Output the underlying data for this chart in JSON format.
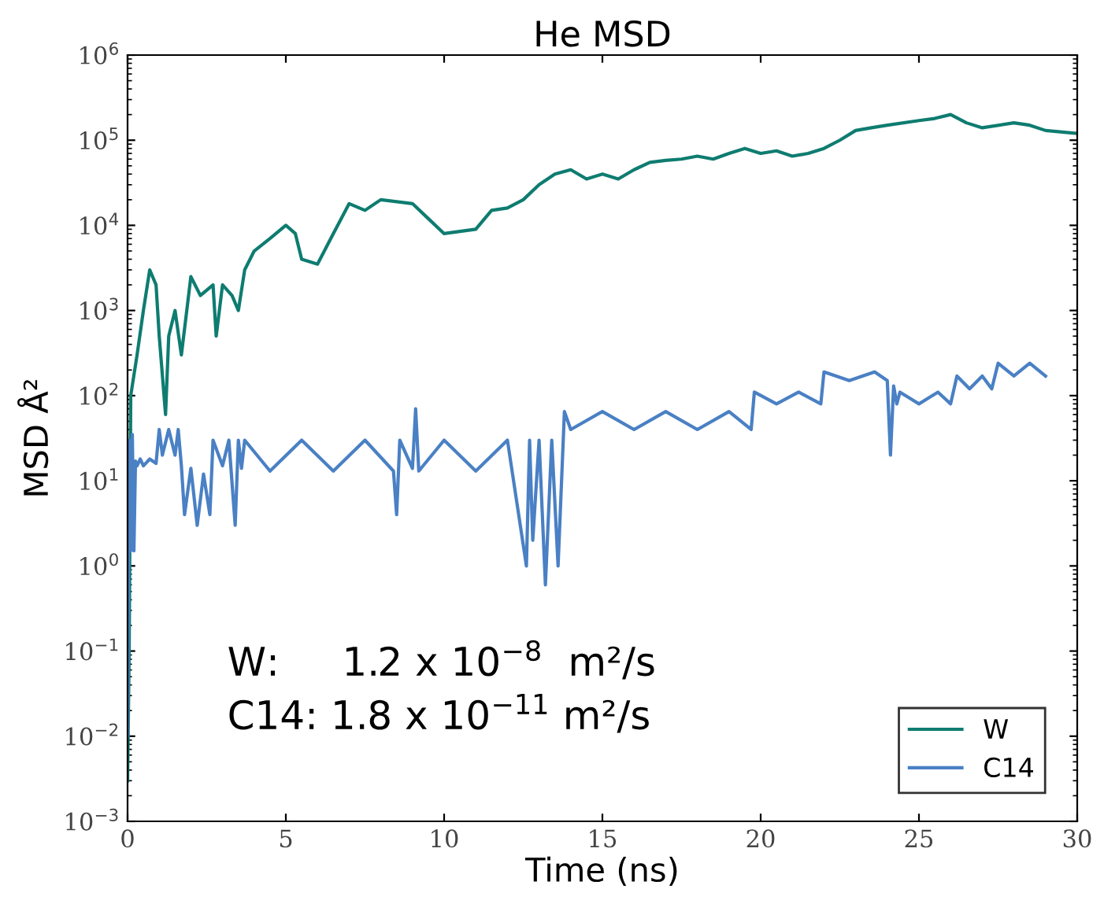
{
  "chart_data": {
    "type": "line",
    "title": "He MSD",
    "xlabel": "Time (ns)",
    "ylabel": "MSD Å²",
    "log": "y",
    "xlim": [
      0,
      30
    ],
    "ylim": [
      0.001,
      1000000
    ],
    "xticks": [
      0,
      5,
      10,
      15,
      20,
      25,
      30
    ],
    "yticks": [
      {
        "value": 0.001,
        "label": "10$^{−3}$"
      },
      {
        "value": 0.01,
        "label": "10$^{−2}$"
      },
      {
        "value": 0.1,
        "label": "10$^{−1}$"
      },
      {
        "value": 1,
        "label": "10$^{0}$"
      },
      {
        "value": 10,
        "label": "10$^{1}$"
      },
      {
        "value": 100,
        "label": "10$^{2}$"
      },
      {
        "value": 1000,
        "label": "10$^{3}$"
      },
      {
        "value": 10000,
        "label": "10$^{4}$"
      },
      {
        "value": 100000,
        "label": "10$^{5}$"
      },
      {
        "value": 1000000,
        "label": "10$^{6}$"
      }
    ],
    "grid": false,
    "legend": "bottom right",
    "marker": "none",
    "line_style": "solid",
    "annotations": [
      "W:     1.2 x 10$^{−8}$  m²/s",
      "C14: 1.8 x 10$^{−11}$ m²/s"
    ],
    "series": [
      {
        "name": "W",
        "color": "#0e7c70",
        "x": [
          0,
          0.05,
          0.1,
          0.3,
          0.5,
          0.7,
          0.9,
          1.0,
          1.2,
          1.3,
          1.5,
          1.7,
          2.0,
          2.3,
          2.7,
          2.8,
          3.0,
          3.3,
          3.5,
          3.7,
          4.0,
          4.5,
          5.0,
          5.3,
          5.5,
          6.0,
          6.5,
          7.0,
          7.5,
          8.0,
          9.0,
          9.5,
          10.0,
          10.5,
          11.0,
          11.5,
          12.0,
          12.5,
          13.0,
          13.5,
          14.0,
          14.5,
          15.0,
          15.5,
          16.0,
          16.5,
          17.0,
          17.5,
          18.0,
          18.5,
          19.0,
          19.5,
          20.0,
          20.5,
          21.0,
          21.5,
          22.0,
          22.5,
          23.0,
          23.5,
          24.0,
          25.0,
          25.5,
          26.0,
          26.5,
          27.0,
          28.0,
          28.5,
          29.0,
          30.0
        ],
        "values": [
          0.003,
          0.1,
          100,
          300,
          1000,
          3000,
          2000,
          500,
          60,
          500,
          1000,
          300,
          2500,
          1500,
          2000,
          500,
          2000,
          1500,
          1000,
          3000,
          5000,
          7000,
          10000,
          8000,
          4000,
          3500,
          8000,
          18000,
          15000,
          20000,
          18000,
          12000,
          8000,
          8500,
          9000,
          15000,
          16000,
          20000,
          30000,
          40000,
          45000,
          35000,
          40000,
          35000,
          45000,
          55000,
          58000,
          60000,
          65000,
          60000,
          70000,
          80000,
          70000,
          75000,
          65000,
          70000,
          80000,
          100000,
          130000,
          140000,
          150000,
          170000,
          180000,
          200000,
          160000,
          140000,
          160000,
          150000,
          130000,
          120000
        ]
      },
      {
        "name": "C14",
        "color": "#4a80c4",
        "x": [
          0,
          0.05,
          0.1,
          0.15,
          0.2,
          0.25,
          0.3,
          0.4,
          0.5,
          0.7,
          0.9,
          1.0,
          1.1,
          1.3,
          1.5,
          1.6,
          1.7,
          1.8,
          2.0,
          2.2,
          2.4,
          2.6,
          2.7,
          3.0,
          3.2,
          3.4,
          3.5,
          3.6,
          3.7,
          4.5,
          5.5,
          6.5,
          7.5,
          8.4,
          8.5,
          8.6,
          9.0,
          9.1,
          9.2,
          10.0,
          11.0,
          12.0,
          12.6,
          12.7,
          12.8,
          13.0,
          13.2,
          13.4,
          13.6,
          13.8,
          14.0,
          15.0,
          16.0,
          17.0,
          18.0,
          19.0,
          19.7,
          19.8,
          20.5,
          21.2,
          21.9,
          22.0,
          22.8,
          23.6,
          24.0,
          24.1,
          24.2,
          24.3,
          24.4,
          25.0,
          25.6,
          26.0,
          26.2,
          26.6,
          27.0,
          27.3,
          27.5,
          28.0,
          28.5,
          29.0
        ],
        "values": [
          0.01,
          30,
          1.5,
          35,
          1.5,
          17,
          15,
          18,
          15,
          18,
          16,
          40,
          20,
          40,
          20,
          40,
          15,
          4,
          14,
          3,
          12,
          4,
          30,
          15,
          30,
          3,
          30,
          14,
          30,
          13,
          30,
          13,
          30,
          13,
          4,
          30,
          14,
          70,
          13,
          30,
          13,
          30,
          1,
          30,
          2,
          30,
          0.6,
          30,
          1,
          65,
          40,
          65,
          40,
          65,
          40,
          65,
          40,
          110,
          80,
          110,
          80,
          190,
          150,
          190,
          150,
          20,
          130,
          80,
          110,
          80,
          110,
          80,
          170,
          120,
          170,
          120,
          240,
          170,
          240,
          170
        ]
      }
    ]
  }
}
